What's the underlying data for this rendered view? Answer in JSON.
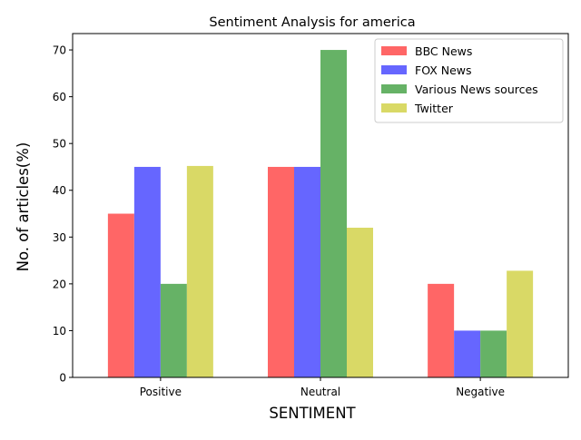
{
  "chart_data": {
    "type": "bar",
    "title": "Sentiment Analysis for america",
    "xlabel": "SENTIMENT",
    "ylabel": "No. of articles(%)",
    "categories": [
      "Positive",
      "Neutral",
      "Negative"
    ],
    "ylim": [
      0,
      73.5
    ],
    "yticks": [
      0,
      10,
      20,
      30,
      40,
      50,
      60,
      70
    ],
    "grid": false,
    "legend_position": "top-right",
    "series": [
      {
        "name": "BBC News",
        "color": "#ff6666",
        "values": [
          35,
          45,
          20
        ]
      },
      {
        "name": "FOX News",
        "color": "#6666ff",
        "values": [
          45,
          45,
          10
        ]
      },
      {
        "name": "Various News sources",
        "color": "#66b266",
        "values": [
          20,
          70,
          10
        ]
      },
      {
        "name": "Twitter",
        "color": "#d9d966",
        "values": [
          45.2,
          32,
          22.8
        ]
      }
    ]
  }
}
